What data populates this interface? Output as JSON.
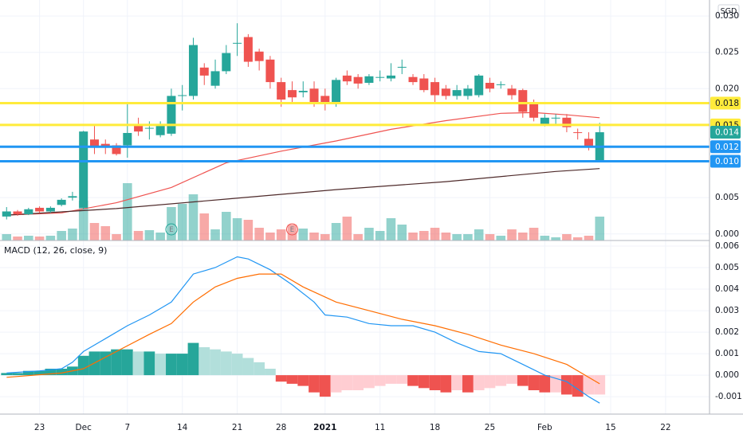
{
  "chart_data": {
    "type": "candlestick",
    "currency": "SGD",
    "colors": {
      "up": "#26a69a",
      "down": "#ef5350",
      "up_volume": "rgba(38,166,154,0.5)",
      "down_volume": "rgba(239,83,80,0.5)"
    },
    "grid": true,
    "xlim": [
      -0.6,
      64
    ],
    "xticks": [
      {
        "value": 3,
        "label": "23"
      },
      {
        "value": 7,
        "label": "Dec"
      },
      {
        "value": 11,
        "label": "7"
      },
      {
        "value": 16,
        "label": "14"
      },
      {
        "value": 21,
        "label": "21"
      },
      {
        "value": 25,
        "label": "28"
      },
      {
        "value": 29,
        "label": "2021",
        "bold": true
      },
      {
        "value": 34,
        "label": "11"
      },
      {
        "value": 39,
        "label": "18"
      },
      {
        "value": 44,
        "label": "25"
      },
      {
        "value": 49,
        "label": "Feb"
      },
      {
        "value": 55,
        "label": "15"
      },
      {
        "value": 60,
        "label": "22"
      }
    ],
    "ylim": [
      -0.0009,
      0.0322
    ],
    "yticks": [
      {
        "value": 0,
        "label": "0.000"
      },
      0.005,
      {
        "value": 0.02,
        "label": "0.020"
      },
      0.025,
      {
        "value": 0.03,
        "label": "0.030"
      }
    ],
    "candles": {
      "open": [
        0.0024,
        0.0031,
        0.0027,
        0.0036,
        0.0031,
        0.004,
        0.005,
        0.0036,
        0.013,
        0.0124,
        0.0122,
        0.0122,
        0.015,
        0.0145,
        0.0136,
        0.0138,
        0.019,
        0.019,
        0.0229,
        0.0204,
        0.0224,
        0.0262,
        0.0271,
        0.0251,
        0.024,
        0.0209,
        0.0198,
        0.0195,
        0.02,
        0.019,
        0.018,
        0.0218,
        0.0216,
        0.0208,
        0.0216,
        0.0214,
        0.0229,
        0.0216,
        0.0214,
        0.0209,
        0.02,
        0.019,
        0.019,
        0.0191,
        0.0208,
        0.0206,
        0.02,
        0.0198,
        0.018,
        0.015,
        0.016,
        0.016,
        0.014,
        0.0131,
        0.01
      ],
      "high": [
        0.0037,
        0.0033,
        0.0036,
        0.0038,
        0.0038,
        0.0049,
        0.0058,
        0.0142,
        0.015,
        0.013,
        0.0125,
        0.018,
        0.016,
        0.0155,
        0.0155,
        0.02,
        0.0205,
        0.027,
        0.0235,
        0.024,
        0.026,
        0.029,
        0.0275,
        0.0255,
        0.0245,
        0.0215,
        0.021,
        0.021,
        0.021,
        0.02,
        0.0215,
        0.0225,
        0.022,
        0.022,
        0.0225,
        0.0235,
        0.024,
        0.022,
        0.022,
        0.0215,
        0.0205,
        0.0205,
        0.0205,
        0.022,
        0.0215,
        0.021,
        0.0205,
        0.02,
        0.0185,
        0.0165,
        0.0165,
        0.0165,
        0.0145,
        0.014,
        0.0153
      ],
      "low": [
        0.002,
        0.0025,
        0.0026,
        0.0029,
        0.0029,
        0.0038,
        0.0046,
        0.0034,
        0.011,
        0.011,
        0.0108,
        0.0105,
        0.0135,
        0.013,
        0.0133,
        0.0135,
        0.017,
        0.0185,
        0.0205,
        0.02,
        0.022,
        0.0245,
        0.023,
        0.0225,
        0.02,
        0.0175,
        0.018,
        0.0188,
        0.0175,
        0.017,
        0.0175,
        0.0205,
        0.02,
        0.0205,
        0.021,
        0.021,
        0.022,
        0.0205,
        0.0195,
        0.018,
        0.0185,
        0.0185,
        0.0185,
        0.0188,
        0.0195,
        0.02,
        0.0185,
        0.016,
        0.0155,
        0.0148,
        0.015,
        0.014,
        0.013,
        0.0115,
        0.0099
      ],
      "close": [
        0.0031,
        0.0027,
        0.0034,
        0.0031,
        0.0036,
        0.0047,
        0.0052,
        0.0141,
        0.012,
        0.012,
        0.011,
        0.0139,
        0.0141,
        0.0146,
        0.015,
        0.019,
        0.0191,
        0.026,
        0.0218,
        0.0224,
        0.0249,
        0.0263,
        0.0237,
        0.0238,
        0.0209,
        0.0185,
        0.0188,
        0.0197,
        0.018,
        0.018,
        0.0212,
        0.021,
        0.0207,
        0.0217,
        0.0216,
        0.0218,
        0.023,
        0.0209,
        0.0198,
        0.0191,
        0.019,
        0.0198,
        0.02,
        0.0218,
        0.02,
        0.0206,
        0.0191,
        0.0168,
        0.016,
        0.016,
        0.016,
        0.0147,
        0.0139,
        0.0119,
        0.014
      ]
    },
    "volume": {
      "values": [
        8,
        5,
        6,
        5,
        6,
        12,
        15,
        50,
        22,
        18,
        8,
        72,
        12,
        13,
        10,
        42,
        46,
        58,
        34,
        14,
        36,
        28,
        26,
        16,
        10,
        14,
        20,
        15,
        10,
        8,
        22,
        30,
        8,
        16,
        12,
        28,
        20,
        10,
        12,
        16,
        10,
        8,
        8,
        14,
        8,
        6,
        14,
        10,
        16,
        6,
        4,
        8,
        4,
        6,
        30
      ]
    },
    "earnings_label": "E",
    "earnings": [
      {
        "x": 15,
        "color": "#26a69a"
      },
      {
        "x": 26,
        "color": "#ef5350"
      }
    ],
    "moving_averages": [
      {
        "color": "#ef5350",
        "x": [
          0,
          5,
          10,
          15,
          20,
          25,
          30,
          35,
          40,
          45,
          48,
          51,
          54
        ],
        "values": [
          0.0026,
          0.0029,
          0.0043,
          0.0064,
          0.0098,
          0.0114,
          0.0128,
          0.0144,
          0.0156,
          0.0166,
          0.0167,
          0.0164,
          0.016
        ]
      },
      {
        "color": "#4e2a2a",
        "x": [
          0,
          10,
          20,
          30,
          40,
          50,
          54
        ],
        "values": [
          0.0026,
          0.0035,
          0.0048,
          0.0061,
          0.0072,
          0.0086,
          0.009
        ]
      }
    ],
    "levels": [
      {
        "value": 0.018,
        "color": "#ffeb3b",
        "text_color": "#131722"
      },
      {
        "value": 0.015,
        "color": "#ffeb3b",
        "text_color": "#131722"
      },
      {
        "value": 0.012,
        "color": "#2196f3",
        "text_color": "#ffffff"
      },
      {
        "value": 0.01,
        "label": "0.010",
        "color": "#2196f3",
        "text_color": "#ffffff"
      }
    ],
    "macd": {
      "title": "MACD (12, 26, close, 9)",
      "ylim": [
        -0.00181,
        0.00626
      ],
      "yticks": [
        0.006,
        0.005,
        0.004,
        0.003,
        0.002,
        0.001,
        {
          "value": 0,
          "label": "0.000"
        },
        -0.001
      ],
      "macd_line": {
        "color": "#2196f3",
        "x": [
          0,
          3,
          5,
          6,
          7,
          9,
          11,
          13,
          15,
          17,
          19,
          21,
          22,
          24,
          26,
          28,
          29,
          31,
          33,
          35,
          37,
          39,
          41,
          43,
          45,
          47,
          49,
          51,
          53,
          54
        ],
        "values": [
          0.0001,
          0.0002,
          0.0003,
          0.0006,
          0.0011,
          0.0017,
          0.0023,
          0.0028,
          0.0034,
          0.0047,
          0.005,
          0.0055,
          0.0054,
          0.0049,
          0.0042,
          0.0034,
          0.0028,
          0.0027,
          0.0024,
          0.0023,
          0.0023,
          0.002,
          0.0015,
          0.0011,
          0.001,
          0.0005,
          0.0,
          -0.0003,
          -0.001,
          -0.0013
        ]
      },
      "signal_line": {
        "color": "#ff6d00",
        "x": [
          0,
          5,
          7,
          10,
          13,
          15,
          17,
          19,
          21,
          23,
          25,
          27,
          30,
          33,
          36,
          39,
          42,
          45,
          48,
          51,
          54
        ],
        "values": [
          -0.0001,
          0.0001,
          0.0003,
          0.0011,
          0.0019,
          0.0024,
          0.0034,
          0.0041,
          0.0045,
          0.0047,
          0.0047,
          0.0041,
          0.0034,
          0.003,
          0.0026,
          0.0023,
          0.0019,
          0.0014,
          0.001,
          0.0005,
          -0.0004
        ]
      },
      "histogram": [
        0.0001,
        0.0001,
        0.0002,
        0.0002,
        0.0003,
        0.0003,
        0.0004,
        0.0009,
        0.0011,
        0.0011,
        0.0012,
        0.0012,
        0.0011,
        0.0011,
        0.001,
        0.001,
        0.001,
        0.0015,
        0.0013,
        0.0012,
        0.0011,
        0.001,
        0.0008,
        0.0006,
        0.0003,
        -0.0003,
        -0.0004,
        -0.0005,
        -0.0008,
        -0.001,
        -0.0008,
        -0.0007,
        -0.0007,
        -0.0006,
        -0.0005,
        -0.0004,
        -0.0004,
        -0.0005,
        -0.0006,
        -0.0007,
        -0.0008,
        -0.0007,
        -0.0008,
        -0.0007,
        -0.0006,
        -0.0005,
        -0.0004,
        -0.0005,
        -0.0007,
        -0.0008,
        -0.0008,
        -0.0009,
        -0.001,
        -0.0009,
        -0.0009
      ],
      "histogram_colors": {
        "rising_up": "#26a69a",
        "falling_up": "#b2dfdb",
        "falling_down": "#ef5350",
        "rising_down": "#ffcdd2"
      }
    }
  }
}
